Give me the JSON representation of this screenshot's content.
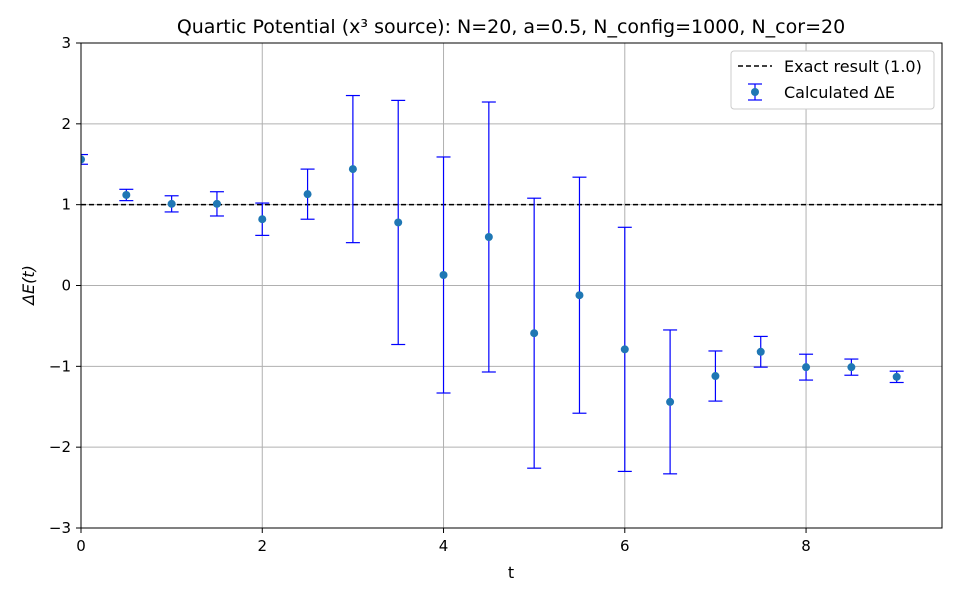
{
  "chart_data": {
    "type": "scatter",
    "title": "Quartic Potential (x³ source): N=20, a=0.5, N_config=1000, N_cor=20",
    "xlabel": "t",
    "ylabel": "ΔE(t)",
    "xlim": [
      0,
      9.5
    ],
    "ylim": [
      -3,
      3
    ],
    "xticks": [
      0,
      2,
      4,
      6,
      8
    ],
    "yticks": [
      -3,
      -2,
      -1,
      0,
      1,
      2,
      3
    ],
    "xtick_labels": [
      "0",
      "2",
      "4",
      "6",
      "8"
    ],
    "ytick_labels": [
      "−3",
      "−2",
      "−1",
      "0",
      "1",
      "2",
      "3"
    ],
    "grid": true,
    "legend_position": "top-right",
    "reference_line": {
      "name": "Exact result (1.0)",
      "y": 1.0,
      "style": "dashed",
      "color": "#000000"
    },
    "series": [
      {
        "name": "Calculated ΔE",
        "marker_color": "#1f77b4",
        "errorbar_color": "#0000ff",
        "x": [
          0,
          0.5,
          1.0,
          1.5,
          2.0,
          2.5,
          3.0,
          3.5,
          4.0,
          4.5,
          5.0,
          5.5,
          6.0,
          6.5,
          7.0,
          7.5,
          8.0,
          8.5,
          9.0
        ],
        "y": [
          1.56,
          1.12,
          1.01,
          1.01,
          0.82,
          1.13,
          1.44,
          0.78,
          0.13,
          0.6,
          -0.59,
          -0.12,
          -0.79,
          -1.44,
          -1.12,
          -0.82,
          -1.01,
          -1.01,
          -1.13
        ],
        "error": [
          0.06,
          0.07,
          0.1,
          0.15,
          0.2,
          0.31,
          0.91,
          1.51,
          1.46,
          1.67,
          1.67,
          1.46,
          1.51,
          0.89,
          0.31,
          0.19,
          0.16,
          0.1,
          0.07
        ]
      }
    ]
  }
}
